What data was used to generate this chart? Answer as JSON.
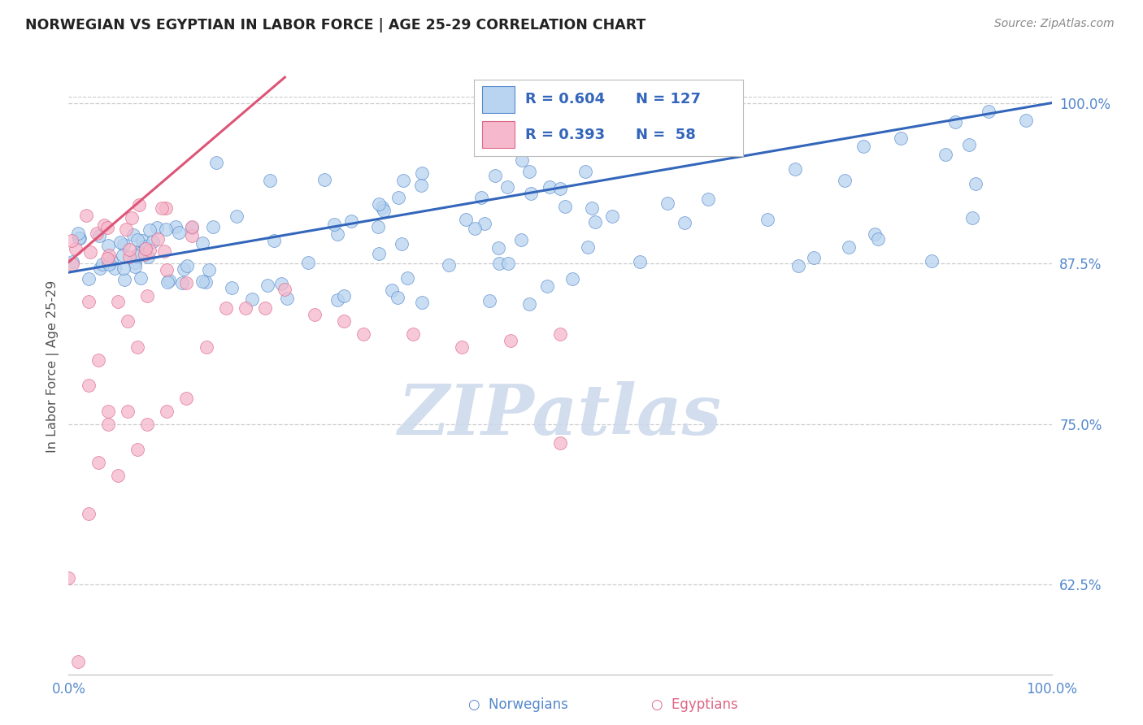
{
  "title": "NORWEGIAN VS EGYPTIAN IN LABOR FORCE | AGE 25-29 CORRELATION CHART",
  "source": "Source: ZipAtlas.com",
  "ylabel": "In Labor Force | Age 25-29",
  "r_norwegian": 0.604,
  "n_norwegian": 127,
  "r_egyptian": 0.393,
  "n_egyptian": 58,
  "color_norwegian": "#b8d4f0",
  "color_egyptian": "#f5b8cc",
  "edge_norwegian": "#5588cc",
  "edge_egyptian": "#dd6688",
  "trendline_norwegian": "#3366bb",
  "trendline_egyptian": "#dd5577",
  "xlim": [
    0.0,
    1.0
  ],
  "ylim": [
    0.555,
    1.035
  ],
  "yticks": [
    0.625,
    0.75,
    0.875,
    1.0
  ],
  "ytick_labels": [
    "62.5%",
    "75.0%",
    "87.5%",
    "100.0%"
  ],
  "background_color": "#ffffff",
  "grid_color": "#cccccc",
  "title_color": "#222222",
  "axis_label_color": "#555555",
  "tick_color": "#5588cc",
  "watermark_text": "ZIPatlas",
  "watermark_color": "#cddaeb",
  "nor_trend_start_y": 0.868,
  "nor_trend_end_y": 1.0,
  "egy_trend_start_y": 0.878,
  "egy_trend_end_y": 1.02
}
